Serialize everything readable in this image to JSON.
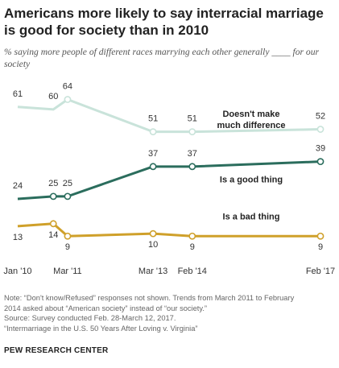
{
  "title": "Americans more likely to say interracial marriage is good for society than in 2010",
  "subtitle": "% saying more people of different races marrying each other generally ____ for our society",
  "chart_data": {
    "type": "line",
    "x": [
      "2010-01",
      "2010-11",
      "2011-03",
      "2013-03",
      "2014-02",
      "2017-02"
    ],
    "x_tick_labels": [
      "Jan '10",
      "Mar '11",
      "Mar '13",
      "Feb '14",
      "Feb '17"
    ],
    "x_tick_dates": [
      "2010-01",
      "2011-03",
      "2013-03",
      "2014-02",
      "2017-02"
    ],
    "series": [
      {
        "name": "Doesn't make much difference",
        "label_lines": [
          "Doesn't make",
          "much difference"
        ],
        "color": "#c9e3da",
        "values": [
          61,
          60,
          64,
          51,
          51,
          52
        ],
        "markers": [
          false,
          false,
          true,
          true,
          true,
          true
        ]
      },
      {
        "name": "Is a good thing",
        "label_lines": [
          "Is a good thing"
        ],
        "color": "#2b6d5d",
        "values": [
          24,
          25,
          25,
          37,
          37,
          39
        ],
        "markers": [
          false,
          true,
          true,
          true,
          true,
          true
        ]
      },
      {
        "name": "Is a bad thing",
        "label_lines": [
          "Is a bad thing"
        ],
        "color": "#cfa02a",
        "values": [
          13,
          14,
          9,
          10,
          9,
          9
        ],
        "markers": [
          false,
          true,
          true,
          true,
          true,
          true
        ]
      }
    ],
    "ylim": [
      0,
      70
    ],
    "grid": false
  },
  "notes": [
    "Note: “Don't know/Refused” responses not shown. Trends from March 2011 to February",
    "2014 asked about “American society” instead of “our society.”",
    "Source: Survey conducted Feb. 28-March 12, 2017.",
    "“Intermarriage in the U.S. 50 Years After Loving v. Virginia”"
  ],
  "source_org": "PEW RESEARCH CENTER"
}
